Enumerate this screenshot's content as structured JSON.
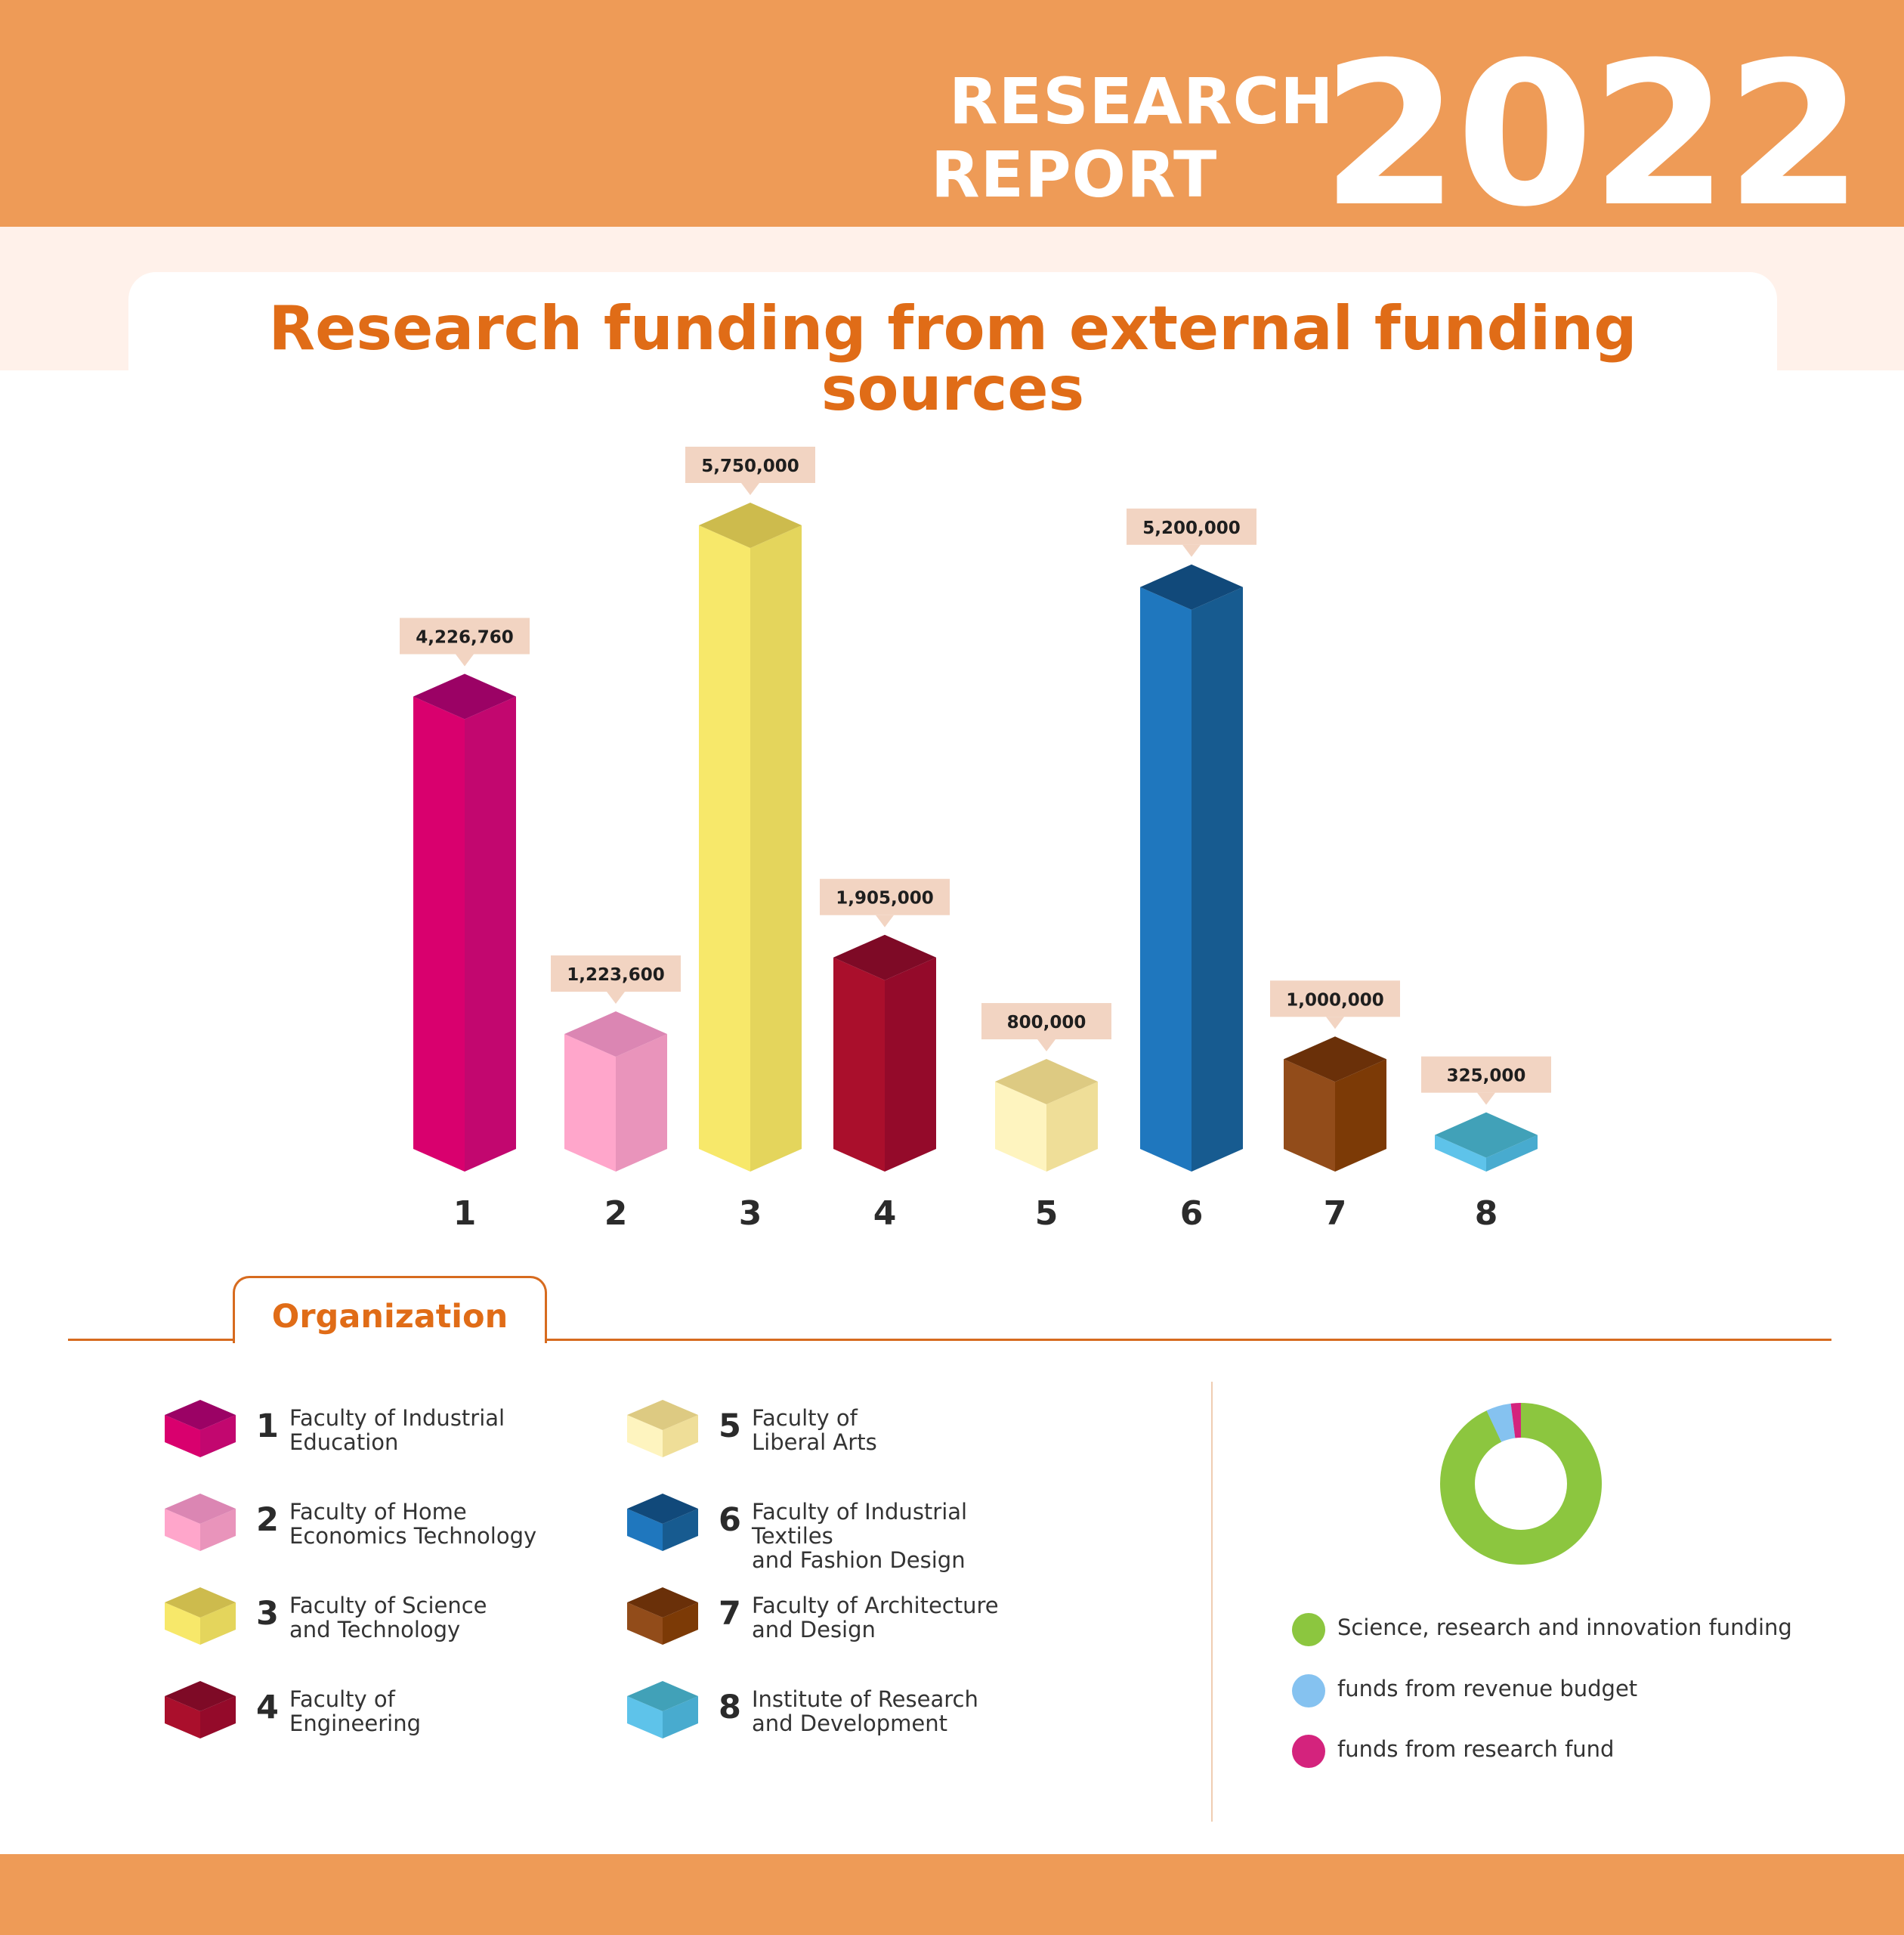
{
  "header": {
    "line1": "RESEARCH",
    "line2": "REPORT",
    "year": "2022"
  },
  "colors": {
    "accent": "#ee9b57",
    "title": "#e06c17",
    "callout": "#f2d4c2"
  },
  "organization_tab": "Organization",
  "chart_data": {
    "type": "bar",
    "title": "Research funding from external funding sources",
    "categories": [
      "1",
      "2",
      "3",
      "4",
      "5",
      "6",
      "7",
      "8"
    ],
    "values": [
      4226760,
      1223600,
      5750000,
      1905000,
      800000,
      5200000,
      1000000,
      325000
    ],
    "value_labels": [
      "4,226,760",
      "1,223,600",
      "5,750,000",
      "1,905,000",
      "800,000",
      "5,200,000",
      "1,000,000",
      "325,000"
    ],
    "style": "3d-isometric",
    "colors": [
      {
        "front": "#d9006e",
        "side": "#c2076f",
        "top": "#9b0265"
      },
      {
        "front": "#ffa6cb",
        "side": "#e994bb",
        "top": "#db86b3"
      },
      {
        "front": "#f7e86a",
        "side": "#e4d55c",
        "top": "#cdbb4d"
      },
      {
        "front": "#aa0f2c",
        "side": "#940a2a",
        "top": "#7e0a26"
      },
      {
        "front": "#fef4bf",
        "side": "#efde98",
        "top": "#ddca82"
      },
      {
        "front": "#1f77be",
        "side": "#175b90",
        "top": "#11497a"
      },
      {
        "front": "#924c1a",
        "side": "#7c3a06",
        "top": "#6a3009"
      },
      {
        "front": "#5ec3ea",
        "side": "#48abcf",
        "top": "#41a1b8"
      }
    ]
  },
  "legend": [
    {
      "num": "1",
      "text": "Faculty of Industrial\nEducation",
      "color": "#d9006e"
    },
    {
      "num": "2",
      "text": "Faculty of Home\nEconomics Technology",
      "color": "#ffa6cb"
    },
    {
      "num": "3",
      "text": "Faculty of Science\nand Technology",
      "color": "#f7e86a"
    },
    {
      "num": "4",
      "text": "Faculty of\nEngineering",
      "color": "#aa0f2c"
    },
    {
      "num": "5",
      "text": "Faculty of\nLiberal Arts",
      "color": "#fef4bf"
    },
    {
      "num": "6",
      "text": "Faculty of Industrial Textiles\nand Fashion Design",
      "color": "#1f77be"
    },
    {
      "num": "7",
      "text": "Faculty of Architecture\nand Design",
      "color": "#924c1a"
    },
    {
      "num": "8",
      "text": "Institute of Research\nand Development",
      "color": "#5ec3ea"
    }
  ],
  "donut_data": {
    "type": "pie",
    "style": "donut",
    "series": [
      {
        "name": "Science, research and innovation funding",
        "value": 93,
        "color": "#8cc63f"
      },
      {
        "name": "funds from revenue budget",
        "value": 5,
        "color": "#85c2f0"
      },
      {
        "name": "funds from research fund",
        "value": 2,
        "color": "#d4237d"
      }
    ]
  }
}
